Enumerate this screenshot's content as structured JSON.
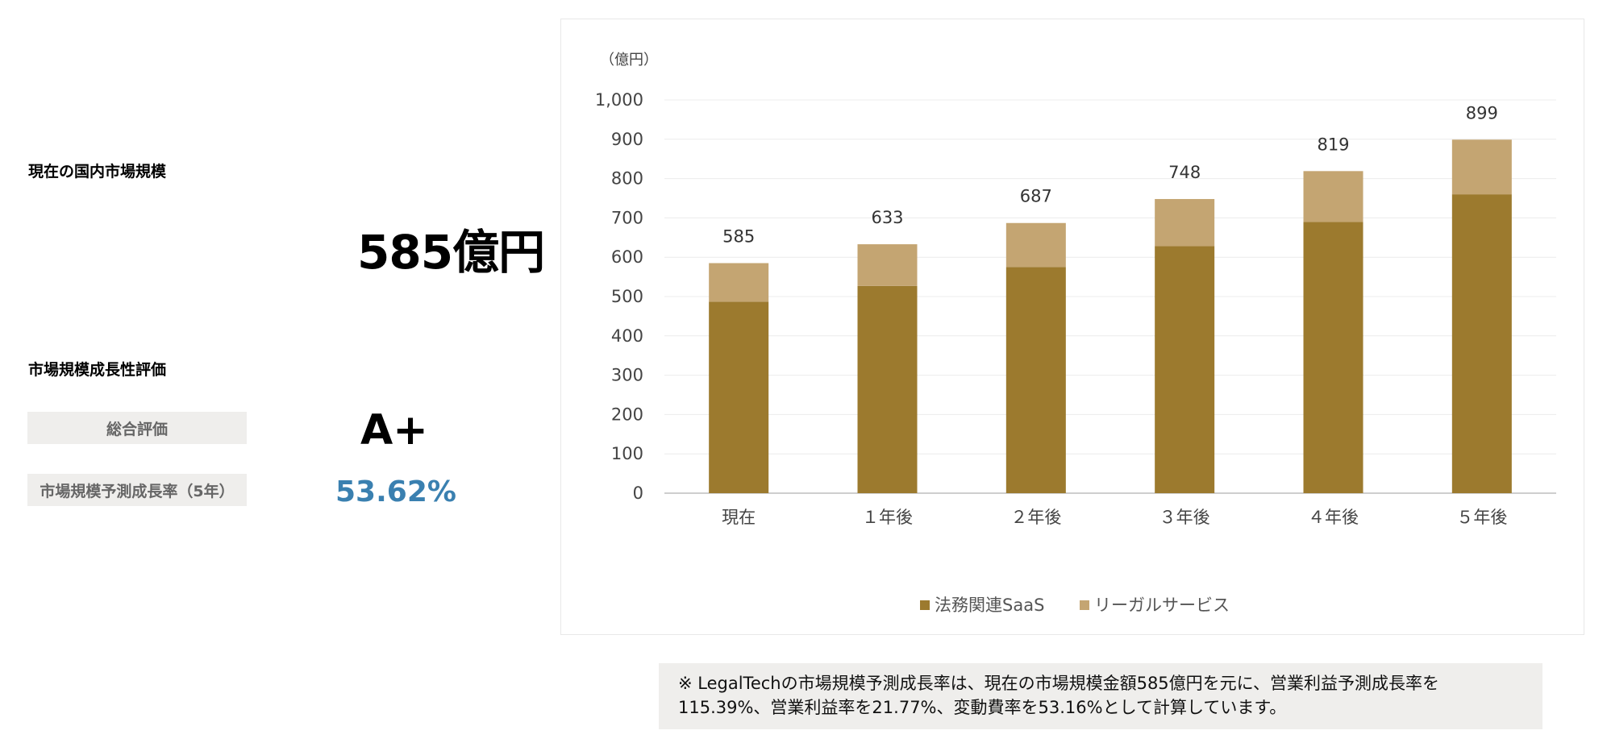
{
  "summary": {
    "current_market_label": "現在の国内市場規模",
    "current_market_value": "585億円",
    "growth_eval_label": "市場規模成長性評価",
    "overall_label": "総合評価",
    "overall_grade": "A+",
    "growth_rate_label": "市場規模予測成長率（5年）",
    "growth_rate_value": "53.62%"
  },
  "chart_data": {
    "type": "bar",
    "stacked": true,
    "unit_label": "（億円）",
    "categories": [
      "現在",
      "１年後",
      "２年後",
      "３年後",
      "４年後",
      "５年後"
    ],
    "series": [
      {
        "name": "法務関連SaaS",
        "values": [
          487,
          527,
          575,
          628,
          690,
          760
        ],
        "color": "#9c7a2e"
      },
      {
        "name": "リーガルサービス",
        "values": [
          98,
          106,
          112,
          120,
          129,
          139
        ],
        "color": "#c4a572"
      }
    ],
    "totals": [
      585,
      633,
      687,
      748,
      819,
      899
    ],
    "ylim": [
      0,
      1000
    ],
    "yticks": [
      0,
      100,
      200,
      300,
      400,
      500,
      600,
      700,
      800,
      900,
      1000
    ],
    "ytick_labels": [
      "0",
      "100",
      "200",
      "300",
      "400",
      "500",
      "600",
      "700",
      "800",
      "900",
      "1,000"
    ],
    "grid": true,
    "legend_position": "bottom"
  },
  "note": "※ LegalTechの市場規模予測成長率は、現在の市場規模金額585億円を元に、営業利益予測成長率を115.39%、営業利益率を21.77%、変動費率を53.16%として計算しています。"
}
